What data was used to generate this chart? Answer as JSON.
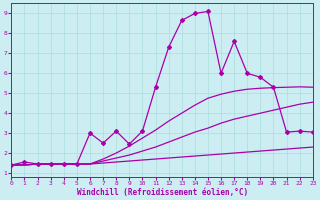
{
  "xlabel": "Windchill (Refroidissement éolien,°C)",
  "background_color": "#cceef2",
  "grid_color": "#aadddd",
  "line_color": "#aa00aa",
  "xlim": [
    0,
    23
  ],
  "ylim": [
    0.8,
    9.5
  ],
  "x_ticks": [
    0,
    1,
    2,
    3,
    4,
    5,
    6,
    7,
    8,
    9,
    10,
    11,
    12,
    13,
    14,
    15,
    16,
    17,
    18,
    19,
    20,
    21,
    22,
    23
  ],
  "y_ticks": [
    1,
    2,
    3,
    4,
    5,
    6,
    7,
    8,
    9
  ],
  "line_flat_x": [
    0,
    1,
    2,
    3,
    4,
    5,
    6,
    7,
    8,
    9,
    10,
    11,
    12,
    13,
    14,
    15,
    16,
    17,
    18,
    19,
    20,
    21,
    22,
    23
  ],
  "line_flat_y": [
    1.4,
    1.4,
    1.45,
    1.45,
    1.45,
    1.45,
    1.45,
    1.5,
    1.55,
    1.6,
    1.65,
    1.7,
    1.75,
    1.8,
    1.85,
    1.9,
    1.95,
    2.0,
    2.05,
    2.1,
    2.15,
    2.2,
    2.25,
    2.3
  ],
  "line_mid_x": [
    0,
    1,
    2,
    3,
    4,
    5,
    6,
    7,
    8,
    9,
    10,
    11,
    12,
    13,
    14,
    15,
    16,
    17,
    18,
    19,
    20,
    21,
    22,
    23
  ],
  "line_mid_y": [
    1.4,
    1.4,
    1.45,
    1.45,
    1.45,
    1.45,
    1.45,
    1.6,
    1.75,
    1.9,
    2.1,
    2.3,
    2.55,
    2.8,
    3.05,
    3.25,
    3.5,
    3.7,
    3.85,
    4.0,
    4.15,
    4.3,
    4.45,
    4.55
  ],
  "line_smooth_x": [
    0,
    1,
    2,
    3,
    4,
    5,
    6,
    7,
    8,
    9,
    10,
    11,
    12,
    13,
    14,
    15,
    16,
    17,
    18,
    19,
    20,
    21,
    22,
    23
  ],
  "line_smooth_y": [
    1.4,
    1.4,
    1.45,
    1.45,
    1.45,
    1.45,
    1.45,
    1.7,
    2.0,
    2.35,
    2.75,
    3.15,
    3.6,
    4.0,
    4.4,
    4.75,
    4.95,
    5.1,
    5.2,
    5.25,
    5.28,
    5.3,
    5.32,
    5.3
  ],
  "line_main_x": [
    0,
    1,
    2,
    3,
    4,
    5,
    6,
    7,
    8,
    9,
    10,
    11,
    12,
    13,
    14,
    15,
    16,
    17,
    18,
    19,
    20,
    21,
    22,
    23
  ],
  "line_main_y": [
    1.4,
    1.55,
    1.45,
    1.45,
    1.45,
    1.45,
    3.0,
    2.5,
    3.1,
    2.45,
    3.1,
    5.3,
    7.3,
    8.65,
    9.0,
    9.1,
    6.0,
    7.6,
    6.0,
    5.8,
    5.3,
    3.05,
    3.1,
    3.05
  ]
}
